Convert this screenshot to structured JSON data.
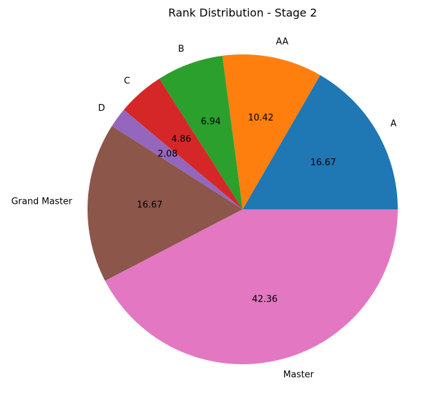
{
  "chart_data": {
    "type": "pie",
    "title": "Rank Distribution - Stage 2",
    "slices": [
      {
        "label": "A",
        "value": 16.67,
        "value_label": "16.67",
        "color": "#1f77b4"
      },
      {
        "label": "AA",
        "value": 10.42,
        "value_label": "10.42",
        "color": "#ff7f0e"
      },
      {
        "label": "B",
        "value": 6.94,
        "value_label": "6.94",
        "color": "#2ca02c"
      },
      {
        "label": "C",
        "value": 4.86,
        "value_label": "4.86",
        "color": "#d62728"
      },
      {
        "label": "D",
        "value": 2.08,
        "value_label": "2.08",
        "color": "#9467bd"
      },
      {
        "label": "Grand Master",
        "value": 16.67,
        "value_label": "16.67",
        "color": "#8c564b"
      },
      {
        "label": "Master",
        "value": 42.36,
        "value_label": "42.36",
        "color": "#e377c2"
      }
    ],
    "start_angle_deg": 0,
    "direction": "counterclockwise",
    "legend": "none"
  }
}
